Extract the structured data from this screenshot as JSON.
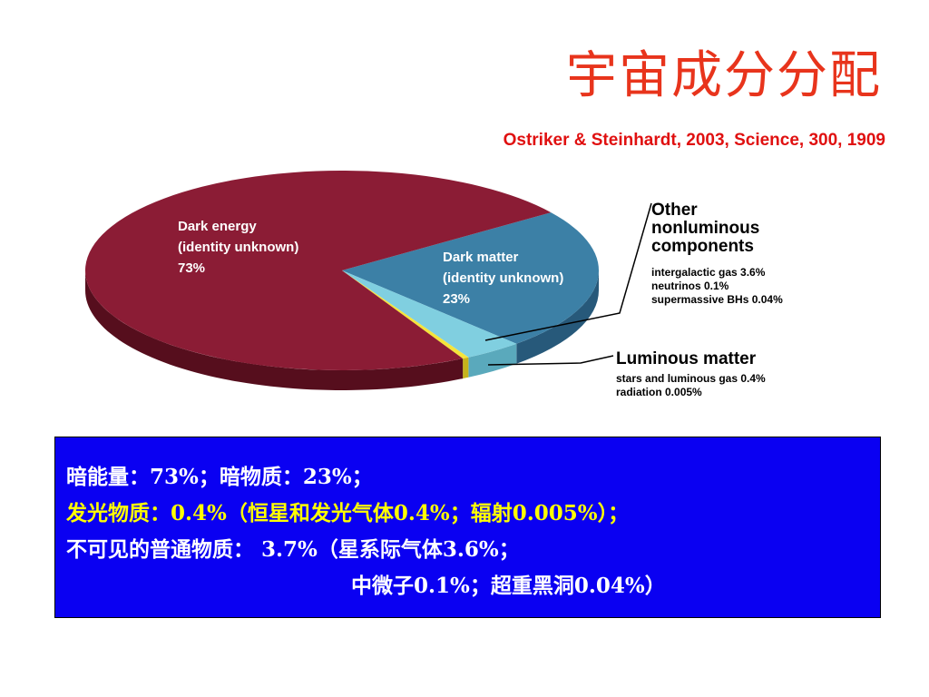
{
  "title": "宇宙成分分配",
  "reference": "Ostriker & Steinhardt, 2003, Science, 300, 1909",
  "chart_data": {
    "type": "pie",
    "slices": [
      {
        "label_lines": [
          "Dark energy",
          "(identity unknown)",
          "73%"
        ],
        "value": 73,
        "color": "#8b1c35",
        "side_color": "#560e1d"
      },
      {
        "label_lines": [
          "Dark matter",
          "(identity unknown)",
          "23%"
        ],
        "value": 23,
        "color": "#3c80a6",
        "side_color": "#27597a"
      },
      {
        "label_lines": [],
        "value": 3.7,
        "color": "#80cfe0",
        "side_color": "#5aa9bc"
      },
      {
        "label_lines": [],
        "value": 0.4,
        "color": "#f5e43a",
        "side_color": "#c6b31b"
      }
    ],
    "callouts": {
      "other": {
        "heading_lines": [
          "Other",
          "nonluminous",
          "components"
        ],
        "details": [
          "intergalactic gas 3.6%",
          "neutrinos 0.1%",
          "supermassive BHs 0.04%"
        ]
      },
      "luminous": {
        "heading": "Luminous matter",
        "details": [
          "stars and luminous gas 0.4%",
          "radiation 0.005%"
        ]
      }
    }
  },
  "summary": {
    "line1": "暗能量：73%；暗物质：23%；",
    "line2": "发光物质：0.4%（恒星和发光气体0.4%；辐射0.005%）；",
    "line3": "不可见的普通物质： 3.7%（星系际气体3.6%；",
    "line4": "中微子0.1%；超重黑洞0.04%）",
    "colors": {
      "white": "#ffffff",
      "yellow": "#ffff00",
      "background": "#0a00f2"
    }
  }
}
